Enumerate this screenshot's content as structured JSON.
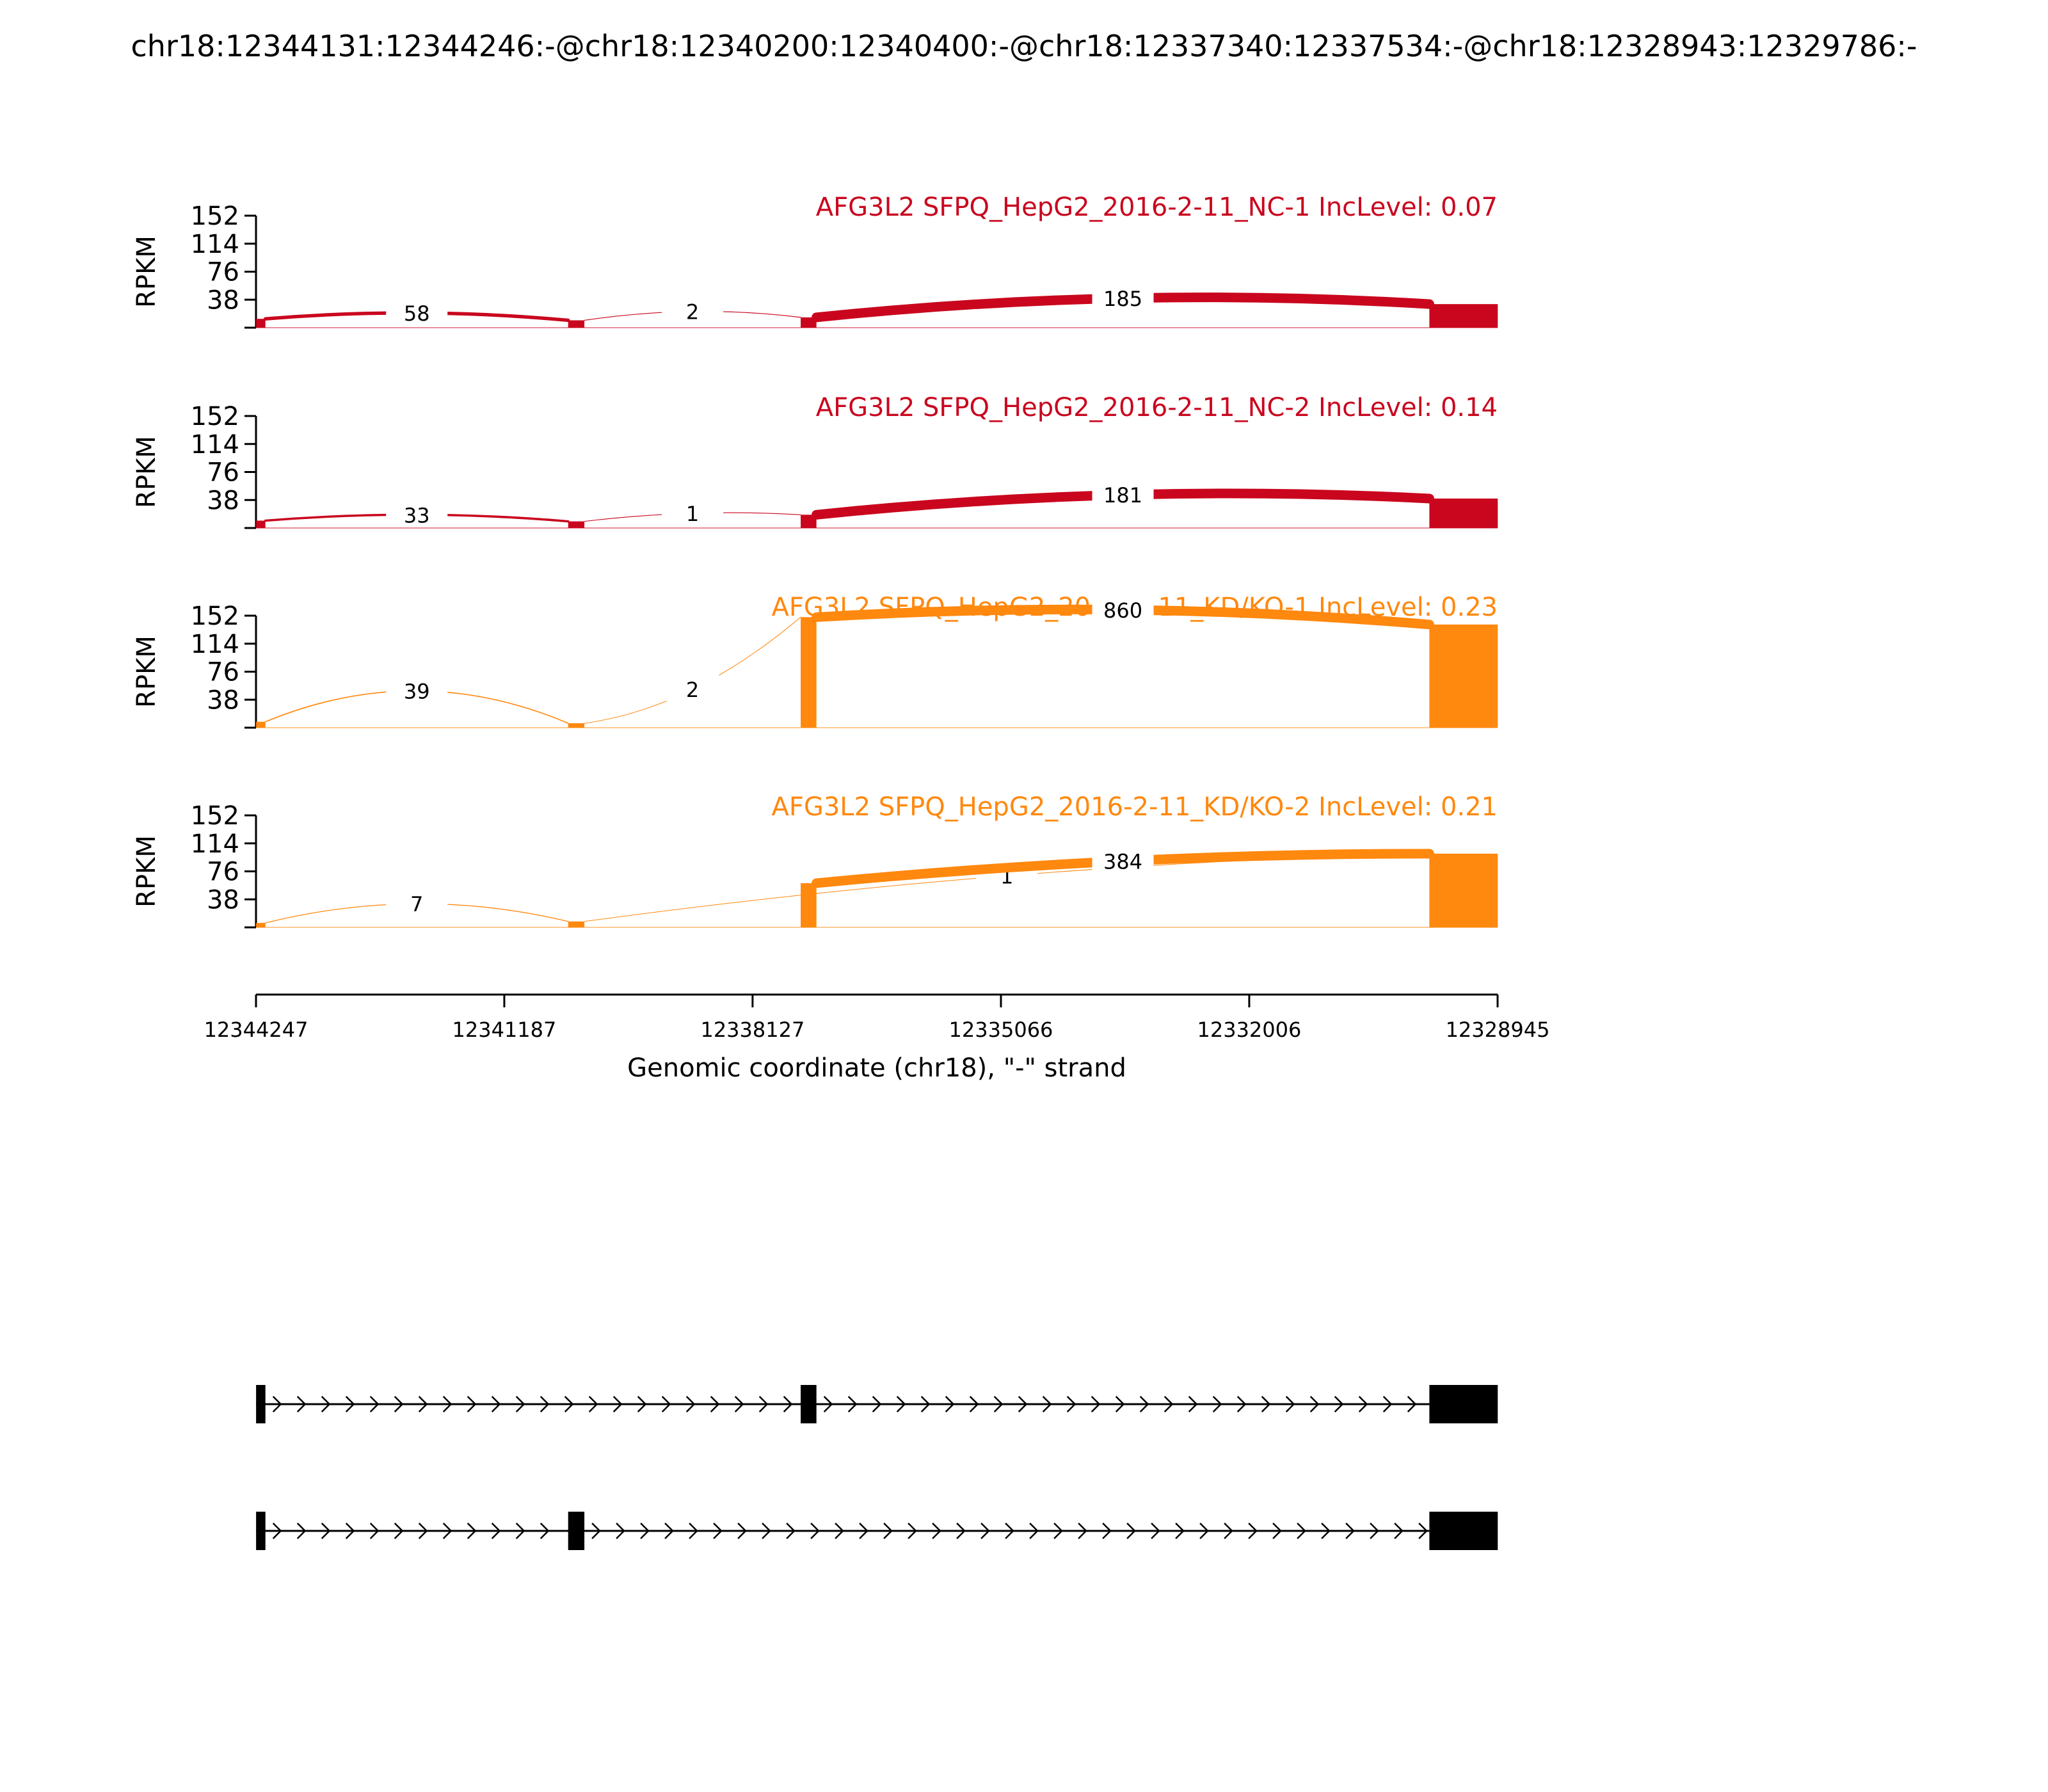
{
  "figure_title": "chr18:12344131:12344246:-@chr18:12340200:12340400:-@chr18:12337340:12337534:-@chr18:12328943:12329786:-",
  "y_axis_label": "RPKM",
  "x_axis_label": "Genomic coordinate (chr18), \"-\" strand",
  "colors": {
    "NC": "#c9061e",
    "KD": "#ff880e"
  },
  "chart_data": {
    "type": "sashimi",
    "title": "chr18:12344131:12344246:-@chr18:12340200:12340400:-@chr18:12337340:12337534:-@chr18:12328943:12329786:-",
    "xlabel": "Genomic coordinate (chr18), \"-\" strand",
    "ylabel": "RPKM",
    "xlim": [
      12344247,
      12328945
    ],
    "x_ticks": [
      "12344247",
      "12341187",
      "12338127",
      "12335066",
      "12332006",
      "12328945"
    ],
    "ylim": [
      0,
      152
    ],
    "y_ticks": [
      "38",
      "76",
      "114",
      "152"
    ],
    "exons": {
      "A": [
        12344131,
        12344246
      ],
      "B": [
        12340200,
        12340400
      ],
      "C": [
        12337340,
        12337534
      ],
      "D": [
        12328943,
        12329786
      ]
    },
    "panels": [
      {
        "label": "AFG3L2 SFPQ_HepG2_2016-2-11_NC-1 IncLevel: 0.07",
        "group": "NC",
        "coverage": {
          "A": 12,
          "B": 10,
          "C": 14,
          "D": 32
        },
        "junctions": [
          {
            "from": "A",
            "to": "B",
            "count": "58",
            "height": 20,
            "side": "top"
          },
          {
            "from": "B",
            "to": "C",
            "count": "2",
            "height": 22,
            "side": "top"
          },
          {
            "from": "C",
            "to": "D",
            "count": "185",
            "height": 40,
            "side": "top"
          }
        ]
      },
      {
        "label": "AFG3L2 SFPQ_HepG2_2016-2-11_NC-2 IncLevel: 0.14",
        "group": "NC",
        "coverage": {
          "A": 10,
          "B": 9,
          "C": 18,
          "D": 40
        },
        "junctions": [
          {
            "from": "A",
            "to": "B",
            "count": "33",
            "height": 18,
            "side": "top"
          },
          {
            "from": "B",
            "to": "C",
            "count": "1",
            "height": 20,
            "side": "top"
          },
          {
            "from": "C",
            "to": "D",
            "count": "181",
            "height": 45,
            "side": "top"
          }
        ]
      },
      {
        "label": "AFG3L2 SFPQ_HepG2_2016-2-11_KD/KO-1 IncLevel: 0.23",
        "group": "KD",
        "coverage": {
          "A": 8,
          "B": 6,
          "C": 150,
          "D": 140
        },
        "junctions": [
          {
            "from": "A",
            "to": "B",
            "count": "39",
            "height": 50,
            "side": "top"
          },
          {
            "from": "B",
            "to": "C",
            "count": "2",
            "height": 52,
            "side": "top"
          },
          {
            "from": "C",
            "to": "D",
            "count": "860",
            "height": 160,
            "side": "top"
          }
        ]
      },
      {
        "label": "AFG3L2 SFPQ_HepG2_2016-2-11_KD/KO-2 IncLevel: 0.21",
        "group": "KD",
        "coverage": {
          "A": 6,
          "B": 8,
          "C": 60,
          "D": 100
        },
        "junctions": [
          {
            "from": "A",
            "to": "B",
            "count": "7",
            "height": 32,
            "side": "top"
          },
          {
            "from": "B",
            "to": "D",
            "count": "1",
            "height": 70,
            "side": "top"
          },
          {
            "from": "C",
            "to": "D",
            "count": "384",
            "height": 90,
            "side": "top"
          }
        ]
      }
    ],
    "isoforms": [
      {
        "exons": [
          "A",
          "C",
          "D"
        ]
      },
      {
        "exons": [
          "A",
          "B",
          "D"
        ]
      }
    ]
  }
}
